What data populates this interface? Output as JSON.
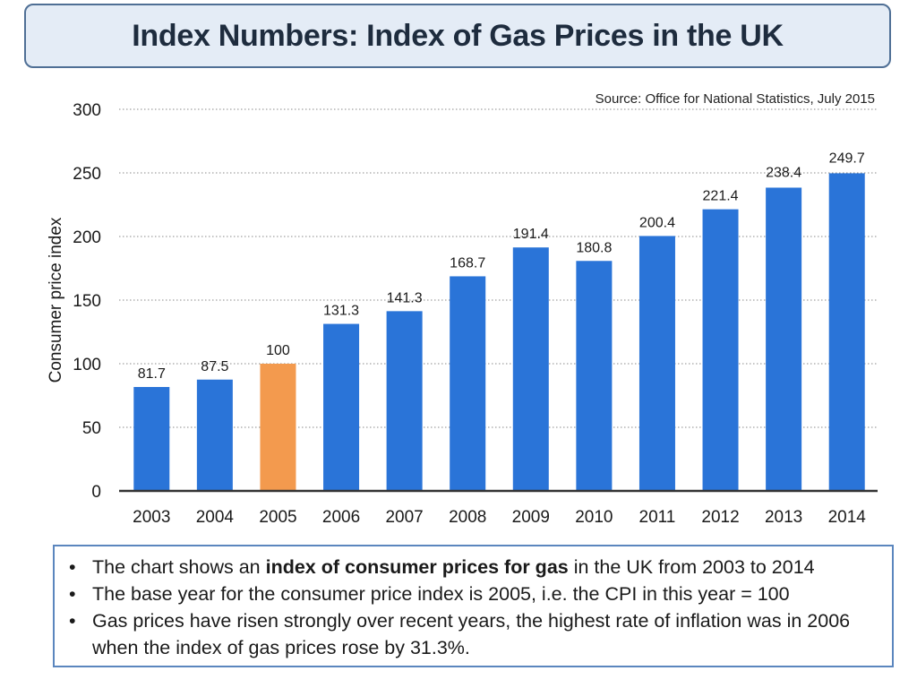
{
  "chart_data": {
    "type": "bar",
    "title": "Index Numbers: Index of Gas Prices in the UK",
    "source": "Source: Office for National Statistics, July 2015",
    "ylabel": "Consumer price index",
    "xlabel": "",
    "ylim": [
      0,
      300
    ],
    "yticks": [
      0,
      50,
      100,
      150,
      200,
      250,
      300
    ],
    "grid": true,
    "categories": [
      "2003",
      "2004",
      "2005",
      "2006",
      "2007",
      "2008",
      "2009",
      "2010",
      "2011",
      "2012",
      "2013",
      "2014"
    ],
    "values": [
      81.7,
      87.5,
      100,
      131.3,
      141.3,
      168.7,
      191.4,
      180.8,
      200.4,
      221.4,
      238.4,
      249.7
    ],
    "data_labels": [
      "81.7",
      "87.5",
      "100",
      "131.3",
      "141.3",
      "168.7",
      "191.4",
      "180.8",
      "200.4",
      "221.4",
      "238.4",
      "249.7"
    ],
    "highlight_category": "2005",
    "bar_color": "#2a74d8",
    "highlight_color": "#f39a4e"
  },
  "notes": [
    {
      "pre": "The chart shows an ",
      "bold": "index of consumer prices for gas",
      "post": " in the UK from 2003 to 2014"
    },
    {
      "pre": "The base year for the consumer price index is 2005, i.e. the CPI in this year = 100",
      "bold": "",
      "post": ""
    },
    {
      "pre": "Gas prices have risen strongly over recent years, the highest rate of inflation was in 2006 when the index of gas prices rose by 31.3%.",
      "bold": "",
      "post": ""
    }
  ]
}
